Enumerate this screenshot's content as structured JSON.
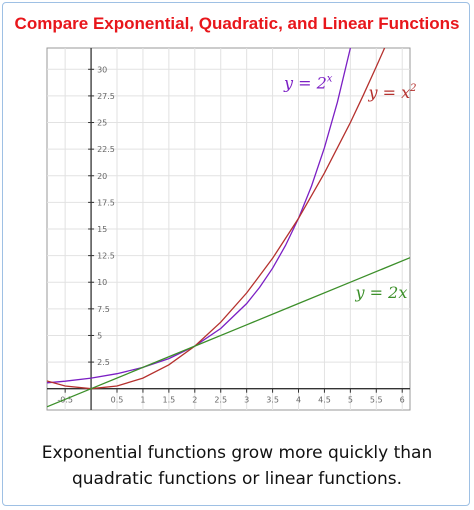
{
  "title": "Compare Exponential, Quadratic, and Linear Functions",
  "caption": {
    "line1": "Exponential functions grow more quickly than",
    "line2": "quadratic functions or linear functions."
  },
  "chart_data": {
    "type": "line",
    "xlim": [
      -0.85,
      6.15
    ],
    "ylim": [
      -2,
      32
    ],
    "grid": true,
    "x_ticks": [
      {
        "value": -0.5,
        "label": "-0.5"
      },
      {
        "value": 0.5,
        "label": "0.5"
      },
      {
        "value": 1,
        "label": "1"
      },
      {
        "value": 1.5,
        "label": "1.5"
      },
      {
        "value": 2,
        "label": "2"
      },
      {
        "value": 2.5,
        "label": "2.5"
      },
      {
        "value": 3,
        "label": "3"
      },
      {
        "value": 3.5,
        "label": "3.5"
      },
      {
        "value": 4,
        "label": "4"
      },
      {
        "value": 4.5,
        "label": "4.5"
      },
      {
        "value": 5,
        "label": "5"
      },
      {
        "value": 5.5,
        "label": "5.5"
      },
      {
        "value": 6,
        "label": "6"
      }
    ],
    "y_ticks": [
      {
        "value": 2.5,
        "label": "2.5"
      },
      {
        "value": 5,
        "label": "5"
      },
      {
        "value": 7.5,
        "label": "7.5"
      },
      {
        "value": 10,
        "label": "10"
      },
      {
        "value": 12.5,
        "label": "12.5"
      },
      {
        "value": 15,
        "label": "15"
      },
      {
        "value": 17.5,
        "label": "17.5"
      },
      {
        "value": 20,
        "label": "20"
      },
      {
        "value": 22.5,
        "label": "22.5"
      },
      {
        "value": 25,
        "label": "25"
      },
      {
        "value": 27.5,
        "label": "27.5"
      },
      {
        "value": 30,
        "label": "30"
      }
    ],
    "series": [
      {
        "name": "y = 2^x",
        "label_base": "y = 2",
        "label_sup": "x",
        "color": "#7b1fc4",
        "points": [
          [
            -0.85,
            0.555
          ],
          [
            -0.5,
            0.707
          ],
          [
            0,
            1
          ],
          [
            0.5,
            1.414
          ],
          [
            1,
            2
          ],
          [
            1.5,
            2.828
          ],
          [
            2,
            4
          ],
          [
            2.5,
            5.657
          ],
          [
            3,
            8
          ],
          [
            3.25,
            9.514
          ],
          [
            3.5,
            11.314
          ],
          [
            3.75,
            13.454
          ],
          [
            4,
            16
          ],
          [
            4.25,
            19.027
          ],
          [
            4.5,
            22.627
          ],
          [
            4.75,
            26.909
          ],
          [
            5,
            32
          ]
        ]
      },
      {
        "name": "y = x^2",
        "label_base": "y = x",
        "label_sup": "2",
        "color": "#b5312e",
        "points": [
          [
            -0.85,
            0.7225
          ],
          [
            -0.5,
            0.25
          ],
          [
            0,
            0
          ],
          [
            0.5,
            0.25
          ],
          [
            1,
            1
          ],
          [
            1.5,
            2.25
          ],
          [
            2,
            4
          ],
          [
            2.5,
            6.25
          ],
          [
            3,
            9
          ],
          [
            3.5,
            12.25
          ],
          [
            4,
            16
          ],
          [
            4.5,
            20.25
          ],
          [
            5,
            25
          ],
          [
            5.25,
            27.5625
          ],
          [
            5.5,
            30.25
          ],
          [
            5.66,
            32
          ]
        ]
      },
      {
        "name": "y = 2x",
        "label_base": "y = 2x",
        "label_sup": "",
        "color": "#3c8f2a",
        "points": [
          [
            -0.85,
            -1.7
          ],
          [
            0,
            0
          ],
          [
            1,
            2
          ],
          [
            2,
            4
          ],
          [
            3,
            6
          ],
          [
            4,
            8
          ],
          [
            5,
            10
          ],
          [
            6.15,
            12.3
          ]
        ]
      }
    ]
  }
}
